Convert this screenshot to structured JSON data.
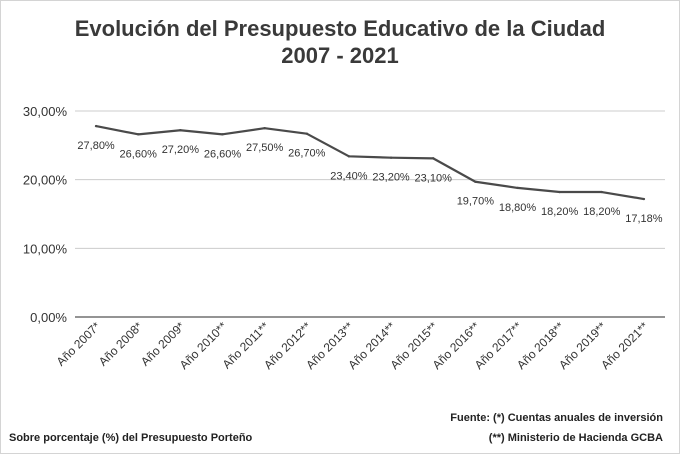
{
  "chart_data": {
    "type": "line",
    "title_line1": "Evolución del Presupuesto Educativo de la Ciudad",
    "title_line2": "2007 - 2021",
    "categories": [
      "Año 2007*",
      "Año 2008*",
      "Año 2009*",
      "Año 2010**",
      "Año 2011**",
      "Año 2012**",
      "Año 2013**",
      "Año 2014**",
      "Año 2015**",
      "Año 2016**",
      "Año 2017**",
      "Año 2018**",
      "Año 2019**",
      "Año 2021**"
    ],
    "values": [
      27.8,
      26.6,
      27.2,
      26.6,
      27.5,
      26.7,
      23.4,
      23.2,
      23.1,
      19.7,
      18.8,
      18.2,
      18.2,
      17.18
    ],
    "data_labels": [
      "27,80%",
      "26,60%",
      "27,20%",
      "26,60%",
      "27,50%",
      "26,70%",
      "23,40%",
      "23,20%",
      "23,10%",
      "19,70%",
      "18,80%",
      "18,20%",
      "18,20%",
      "17,18%"
    ],
    "y_ticks": [
      0,
      10,
      20,
      30
    ],
    "y_tick_labels": [
      "0,00%",
      "10,00%",
      "20,00%",
      "30,00%"
    ],
    "ylim": [
      0,
      30
    ],
    "grid": true,
    "line_color": "#4a4a4a"
  },
  "footer": {
    "note": "Sobre porcentaje (%) del Presupuesto Porteño",
    "source_line1": "Fuente: (*) Cuentas anuales de inversión",
    "source_line2": "(**) Ministerio de Hacienda GCBA"
  }
}
